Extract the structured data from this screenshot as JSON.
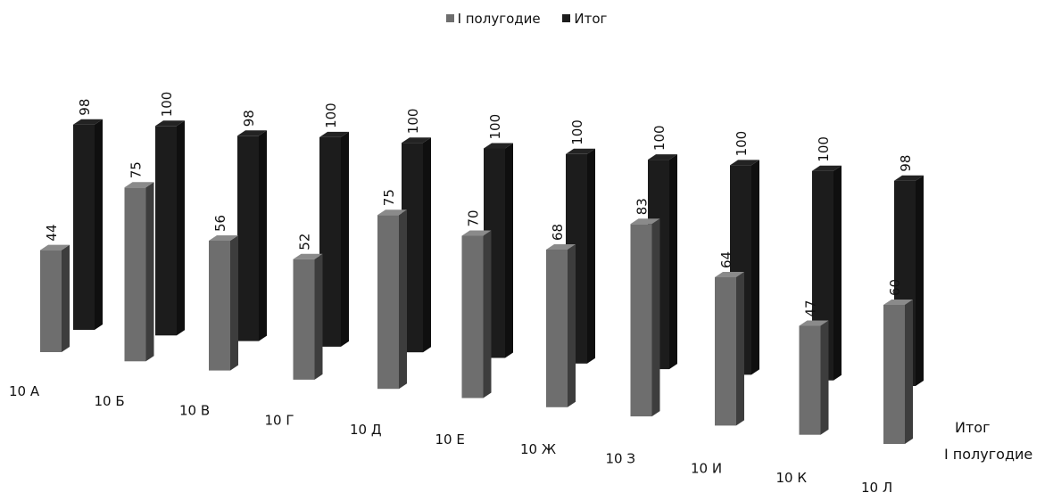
{
  "chart_data": {
    "type": "bar",
    "categories": [
      "10 А",
      "10 Б",
      "10 В",
      "10 Г",
      "10 Д",
      "10 Е",
      "10 Ж",
      "10 З",
      "10 И",
      "10 К",
      "10 Л"
    ],
    "series": [
      {
        "name": "I полугодие",
        "values": [
          44,
          75,
          56,
          52,
          75,
          70,
          68,
          83,
          64,
          47,
          60
        ],
        "color": "#6e6e6e"
      },
      {
        "name": "Итог",
        "values": [
          98,
          100,
          98,
          100,
          100,
          100,
          100,
          100,
          100,
          100,
          98
        ],
        "color": "#1c1c1c"
      }
    ],
    "depth_labels": [
      "Итог",
      "I полугодие"
    ],
    "legend_position": "top",
    "grid": false,
    "style": "3d-column"
  },
  "legend": {
    "series1": "I полугодие",
    "series2": "Итог"
  },
  "depth_axis": {
    "back": "Итог",
    "front": "I полугодие"
  }
}
